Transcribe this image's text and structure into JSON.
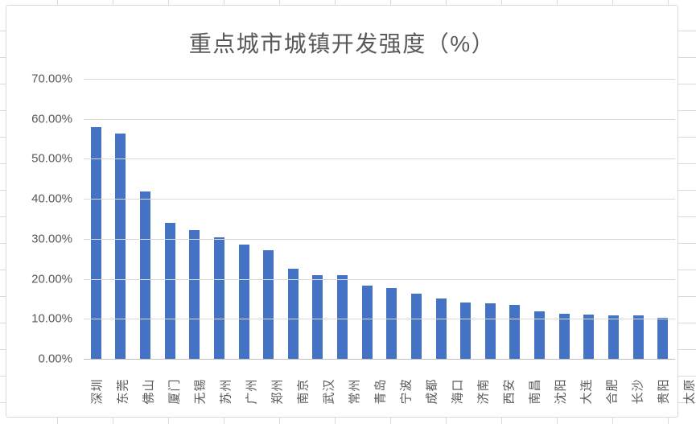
{
  "chart_data": {
    "type": "bar",
    "title": "重点城市城镇开发强度（%）",
    "categories": [
      "深圳",
      "东莞",
      "佛山",
      "厦门",
      "无锡",
      "苏州",
      "广州",
      "郑州",
      "南京",
      "武汉",
      "常州",
      "青岛",
      "宁波",
      "成都",
      "海口",
      "济南",
      "西安",
      "南昌",
      "沈阳",
      "大连",
      "合肥",
      "长沙",
      "贵阳",
      "太原"
    ],
    "values": [
      57.9,
      56.3,
      41.8,
      34.0,
      32.1,
      30.4,
      28.6,
      27.2,
      22.6,
      21.0,
      21.0,
      18.3,
      17.8,
      16.2,
      15.0,
      14.0,
      13.9,
      13.4,
      11.9,
      11.3,
      11.1,
      10.9,
      10.8,
      10.3
    ],
    "xlabel": "",
    "ylabel": "",
    "ylim": [
      0,
      70
    ],
    "yticks": [
      {
        "value": 0,
        "label": "0.00%"
      },
      {
        "value": 10,
        "label": "10.00%"
      },
      {
        "value": 20,
        "label": "20.00%"
      },
      {
        "value": 30,
        "label": "30.00%"
      },
      {
        "value": 40,
        "label": "40.00%"
      },
      {
        "value": 50,
        "label": "50.00%"
      },
      {
        "value": 60,
        "label": "60.00%"
      },
      {
        "value": 70,
        "label": "70.00%"
      }
    ],
    "grid": true,
    "legend_position": "none",
    "colors": {
      "bar": "#4472C4",
      "title_text": "#595959",
      "axis_text": "#595959",
      "gridline": "#D9D9D9",
      "axis_line": "#BFBFBF",
      "chart_border": "#D9D9D9",
      "sheet_gridline": "#D9D9D9",
      "background": "#FFFFFF"
    }
  }
}
